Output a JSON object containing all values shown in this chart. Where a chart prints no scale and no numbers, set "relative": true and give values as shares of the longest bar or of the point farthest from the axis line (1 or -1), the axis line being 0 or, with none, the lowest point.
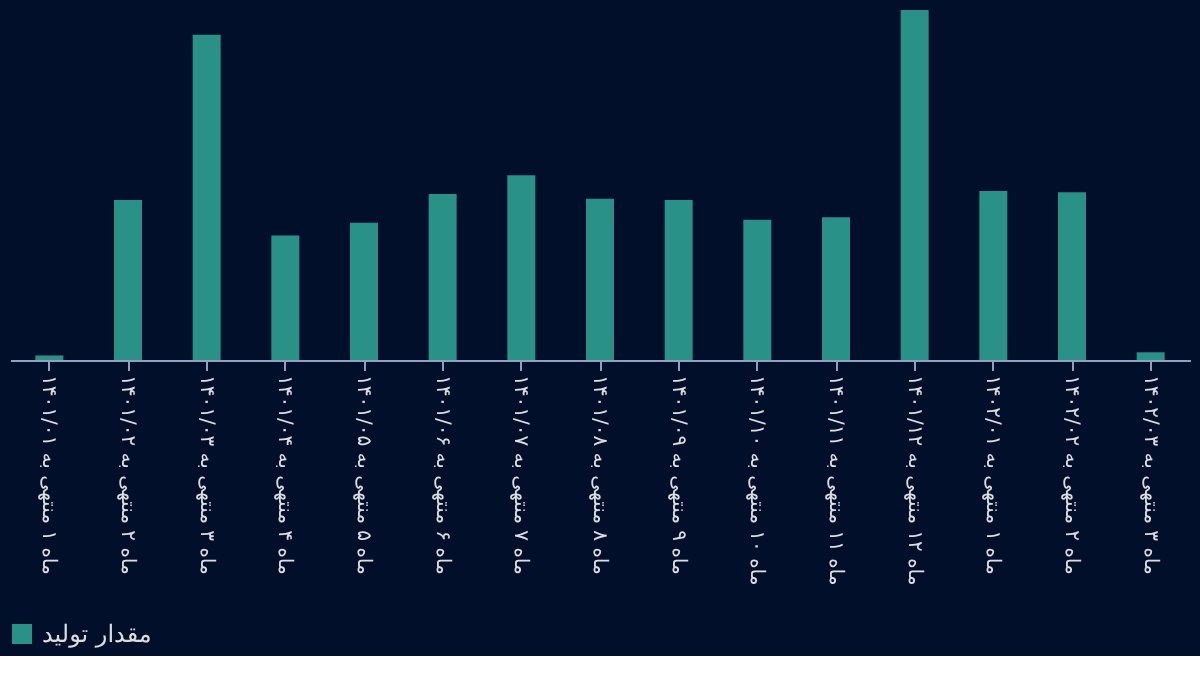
{
  "chart_data": {
    "type": "bar",
    "relative": true,
    "categories": [
      "ماه ۱ منتهی به ۱۴۰۱/۰۱",
      "ماه ۲ منتهی به ۱۴۰۱/۰۲",
      "ماه ۳ منتهی به ۱۴۰۱/۰۳",
      "ماه ۴ منتهی به ۱۴۰۱/۰۴",
      "ماه ۵ منتهی به ۱۴۰۱/۰۵",
      "ماه ۶ منتهی به ۱۴۰۱/۰۶",
      "ماه ۷ منتهی به ۱۴۰۱/۰۷",
      "ماه ۸ منتهی به ۱۴۰۱/۰۸",
      "ماه ۹ منتهی به ۱۴۰۱/۰۹",
      "ماه ۱۰ منتهی به ۱۴۰۱/۱۰",
      "ماه ۱۱ منتهی به ۱۴۰۱/۱۱",
      "ماه ۱۲ منتهی به ۱۴۰۱/۱۲",
      "ماه ۱ منتهی به ۱۴۰۲/۰۱",
      "ماه ۲ منتهی به ۱۴۰۲/۰۲",
      "ماه ۳ منتهی به ۱۴۰۲/۰۳"
    ],
    "series": [
      {
        "name": "مقدار تولید",
        "color": "#2a9188",
        "values": [
          0.013,
          0.457,
          0.929,
          0.356,
          0.392,
          0.474,
          0.528,
          0.461,
          0.457,
          0.401,
          0.408,
          1,
          0.483,
          0.479,
          0.022
        ]
      }
    ],
    "legend": "bottom",
    "grid": false
  }
}
